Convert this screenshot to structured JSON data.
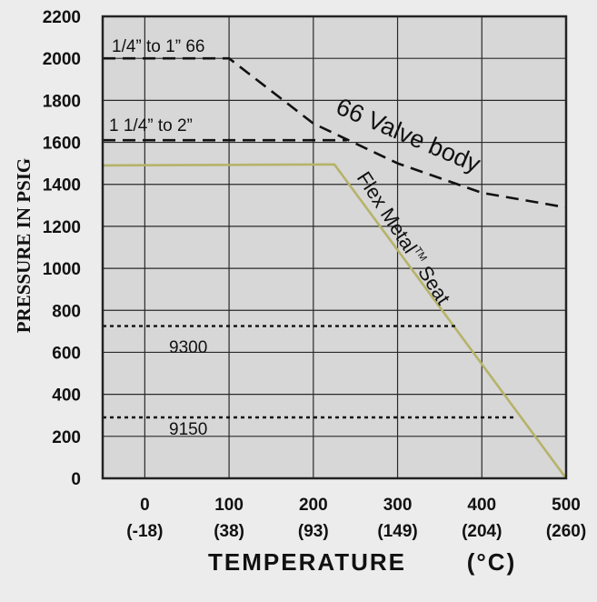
{
  "chart_data": {
    "type": "line",
    "title": "",
    "xlabel": "TEMPERATURE",
    "xunit": "(°C)",
    "ylabel": "PRESSURE IN PSIG",
    "xlim": [
      -50,
      500
    ],
    "ylim": [
      0,
      2200
    ],
    "grid": true,
    "xticks": [
      {
        "value": 0,
        "label": "0",
        "sublabel": "(-18)"
      },
      {
        "value": 100,
        "label": "100",
        "sublabel": "(38)"
      },
      {
        "value": 200,
        "label": "200",
        "sublabel": "(93)"
      },
      {
        "value": 300,
        "label": "300",
        "sublabel": "(149)"
      },
      {
        "value": 400,
        "label": "400",
        "sublabel": "(204)"
      },
      {
        "value": 500,
        "label": "500",
        "sublabel": "(260)"
      }
    ],
    "yticks": [
      "0",
      "200",
      "400",
      "600",
      "800",
      "1000",
      "1200",
      "1400",
      "1600",
      "1800",
      "2000",
      "2200"
    ],
    "series": [
      {
        "key": "valve-body-small",
        "label": "1/4” to 1” 66",
        "style": "dashed",
        "color": "#111111",
        "x": [
          -50,
          100,
          200,
          300,
          400,
          500
        ],
        "y": [
          2000,
          2000,
          1690,
          1500,
          1360,
          1290
        ]
      },
      {
        "key": "valve-body-large",
        "label": "1 1/4” to 2”",
        "style": "dashed",
        "color": "#111111",
        "x": [
          -50,
          240
        ],
        "y": [
          1610,
          1610
        ]
      },
      {
        "key": "flex-metal-seat",
        "style": "solid",
        "color": "#b5b36a",
        "x": [
          -50,
          225,
          500
        ],
        "y": [
          1490,
          1495,
          0
        ]
      },
      {
        "key": "9300",
        "label": "9300",
        "style": "dotted",
        "color": "#111111",
        "x": [
          -50,
          370
        ],
        "y": [
          725,
          725
        ]
      },
      {
        "key": "9150",
        "label": "9150",
        "style": "dotted",
        "color": "#111111",
        "x": [
          -50,
          440
        ],
        "y": [
          290,
          290
        ]
      }
    ],
    "annotations": {
      "valve_body": "66 Valve body",
      "flex_seat": "Flex Metal",
      "flex_seat_tm": "TM",
      "flex_seat_end": " Seat"
    }
  }
}
